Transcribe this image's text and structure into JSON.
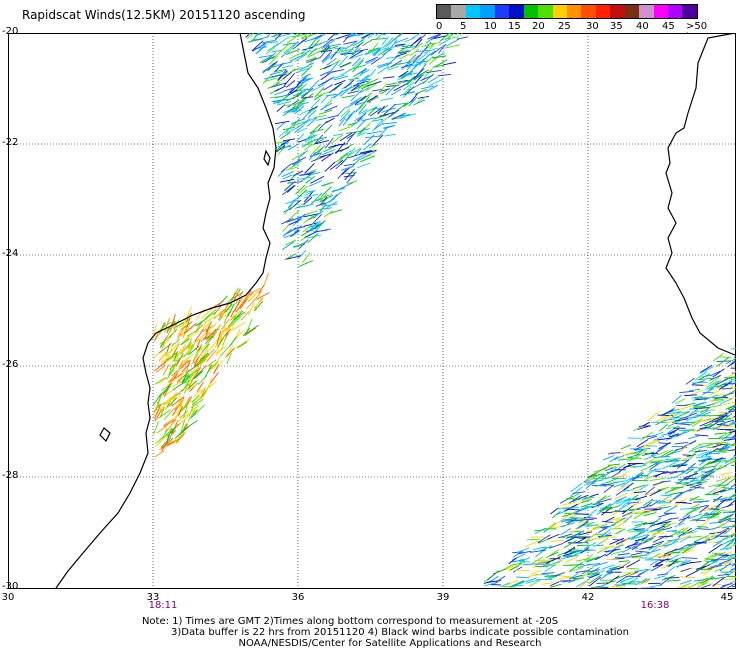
{
  "title": "Rapidscat Winds(12.5KM) 20151120 ascending",
  "scale": {
    "colors": [
      "#5a5a5a",
      "#a8a8a8",
      "#00c8ff",
      "#00a0ff",
      "#1e3cff",
      "#0010c8",
      "#00c000",
      "#50e000",
      "#ffd000",
      "#ff9000",
      "#ff5000",
      "#ff2000",
      "#c01010",
      "#7a3010",
      "#d090d0",
      "#ff00ff",
      "#b000ff",
      "#5000a0"
    ],
    "labels": [
      "0",
      "5",
      "10",
      "15",
      "20",
      "25",
      "30",
      "35",
      "40",
      "45",
      ">50 knots"
    ]
  },
  "lat_labels": [
    "-20",
    "-22",
    "-24",
    "-26",
    "-28",
    "-30"
  ],
  "lon_labels": [
    "30",
    "33",
    "36",
    "39",
    "42",
    "45"
  ],
  "times": [
    "18:11",
    "16:38"
  ],
  "notes": [
    "Note: 1) Times are GMT 2)Times along bottom correspond to measurement at -20S",
    "3)Data buffer is 22 hrs from 20151120 4) Black wind barbs indicate possible contamination",
    "NOAA/NESDIS/Center for Satellite Applications and Research"
  ]
}
